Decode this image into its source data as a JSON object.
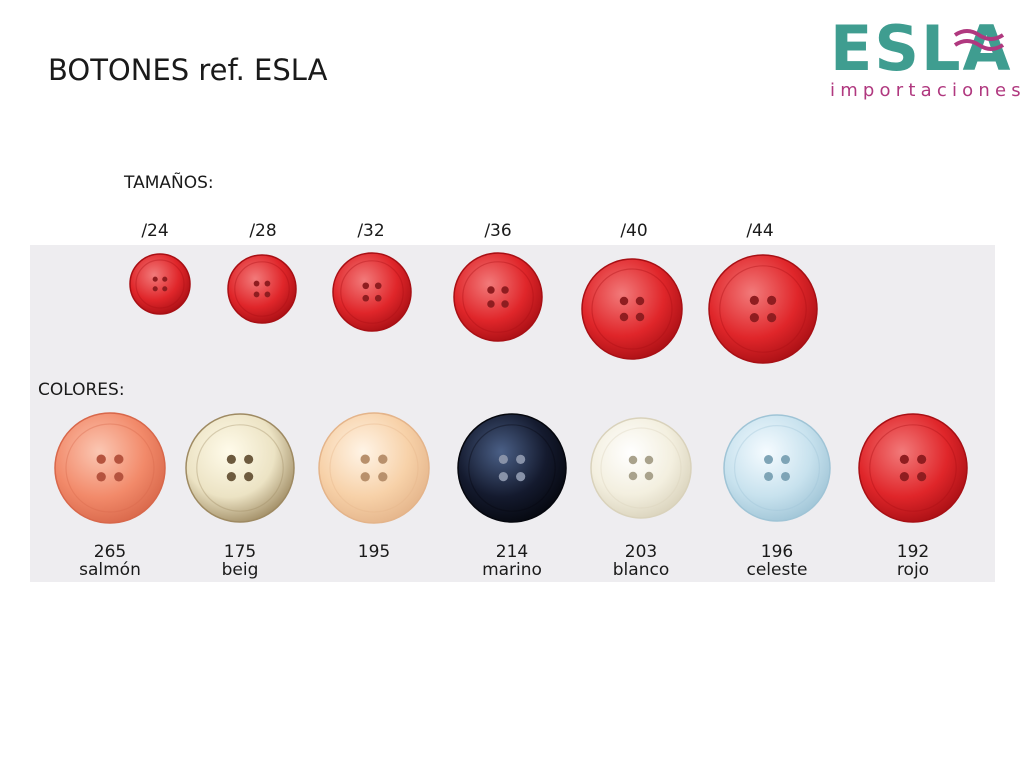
{
  "header": {
    "title": "BOTONES ref. ESLA"
  },
  "logo": {
    "brand": "ESLA",
    "tagline": "importaciones"
  },
  "sizes": {
    "label": "TAMAÑOS:",
    "items": [
      "/24",
      "/28",
      "/32",
      "/36",
      "/40",
      "/44"
    ]
  },
  "colors": {
    "label": "COLORES:",
    "items": [
      {
        "code": "265",
        "name": "salmón"
      },
      {
        "code": "175",
        "name": "beig"
      },
      {
        "code": "195"
      },
      {
        "code": "214",
        "name": "marino"
      },
      {
        "code": "203",
        "name": "blanco"
      },
      {
        "code": "196",
        "name": "celeste"
      },
      {
        "code": "192",
        "name": "rojo"
      }
    ]
  }
}
